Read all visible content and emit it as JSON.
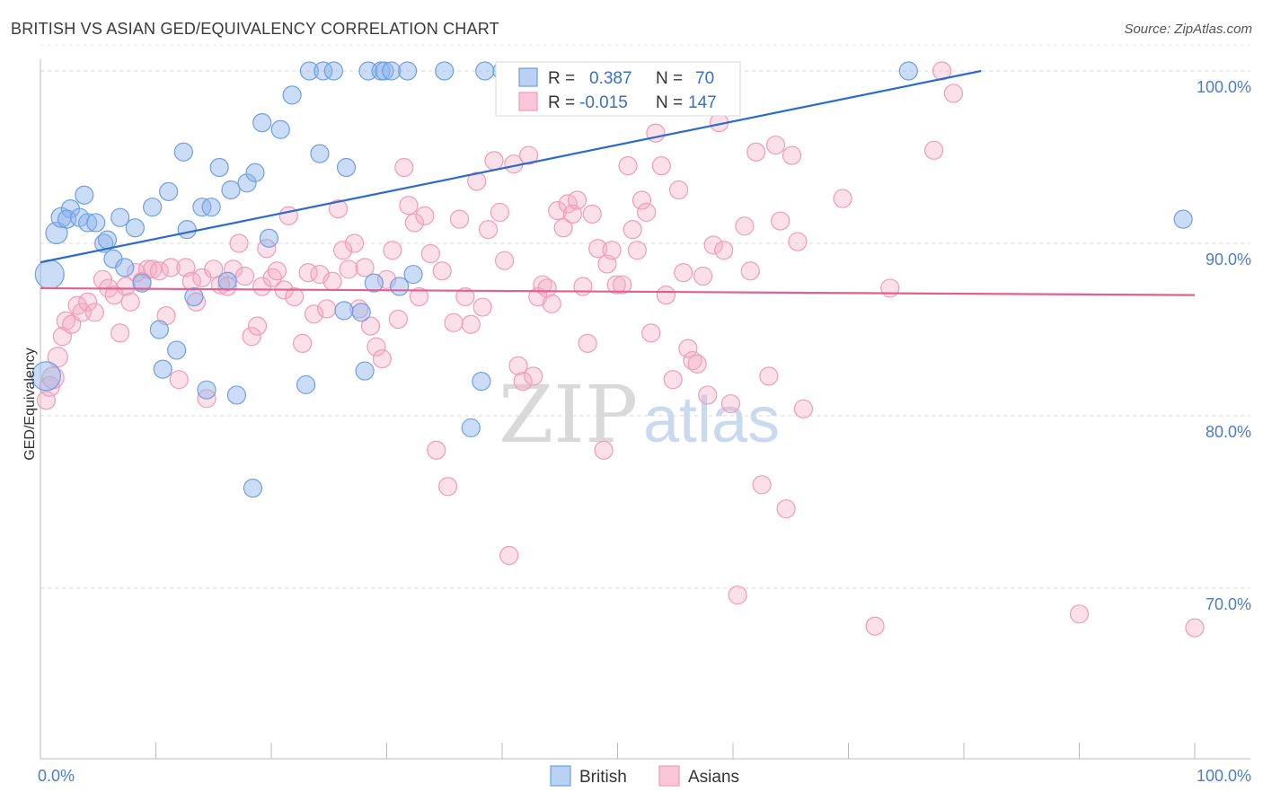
{
  "title": "BRITISH VS ASIAN GED/EQUIVALENCY CORRELATION CHART",
  "source": "Source: ZipAtlas.com",
  "chart_data": {
    "type": "scatter",
    "title": "BRITISH VS ASIAN GED/EQUIVALENCY CORRELATION CHART",
    "ylabel": "GED/Equivalency",
    "xlabel": "",
    "xlim": [
      0,
      100
    ],
    "ylim": [
      60,
      101.5
    ],
    "x_tick_labels": [
      "0.0%",
      "100.0%"
    ],
    "y_ticks": [
      70,
      80,
      90,
      100
    ],
    "y_tick_labels": [
      "70.0%",
      "80.0%",
      "90.0%",
      "100.0%"
    ],
    "grid": true,
    "legend_position": "top-center",
    "watermark": {
      "zip": "ZIP",
      "atlas": "atlas"
    },
    "legend": {
      "british": {
        "r_label": "R =",
        "r_value": "0.387",
        "n_label": "N =",
        "n_value": "70"
      },
      "asians": {
        "r_label": "R =",
        "r_value": "-0.015",
        "n_label": "N =",
        "n_value": "147"
      }
    },
    "series": [
      {
        "name": "British",
        "color": "#6f9fe0",
        "line_color": "#2a6bd1",
        "trend": {
          "x0": 0,
          "y0": 88.9,
          "x1": 81.5,
          "y1": 100
        },
        "points": [
          [
            0.8,
            88.2
          ],
          [
            0.5,
            82.3
          ],
          [
            1.4,
            90.6
          ],
          [
            1.8,
            91.5
          ],
          [
            2.6,
            92.0
          ],
          [
            2.3,
            91.4
          ],
          [
            3.4,
            91.5
          ],
          [
            3.8,
            92.8
          ],
          [
            4.1,
            91.2
          ],
          [
            4.8,
            91.2
          ],
          [
            5.5,
            90.0
          ],
          [
            5.8,
            90.2
          ],
          [
            6.3,
            89.1
          ],
          [
            6.9,
            91.5
          ],
          [
            7.3,
            88.6
          ],
          [
            8.2,
            90.9
          ],
          [
            8.8,
            87.7
          ],
          [
            9.7,
            92.1
          ],
          [
            10.3,
            85.0
          ],
          [
            10.6,
            82.7
          ],
          [
            11.1,
            93.0
          ],
          [
            11.8,
            83.8
          ],
          [
            12.4,
            95.3
          ],
          [
            12.7,
            90.8
          ],
          [
            13.3,
            86.9
          ],
          [
            14.0,
            92.1
          ],
          [
            14.4,
            81.5
          ],
          [
            14.8,
            92.1
          ],
          [
            15.5,
            94.4
          ],
          [
            16.2,
            87.8
          ],
          [
            16.5,
            93.1
          ],
          [
            17.0,
            81.2
          ],
          [
            17.9,
            93.5
          ],
          [
            18.4,
            75.8
          ],
          [
            18.6,
            94.1
          ],
          [
            19.2,
            97.0
          ],
          [
            19.8,
            90.3
          ],
          [
            20.8,
            96.6
          ],
          [
            21.8,
            98.6
          ],
          [
            23.0,
            81.8
          ],
          [
            23.3,
            100
          ],
          [
            24.2,
            95.2
          ],
          [
            24.5,
            100
          ],
          [
            25.4,
            100
          ],
          [
            26.3,
            86.1
          ],
          [
            26.5,
            94.4
          ],
          [
            27.8,
            86.0
          ],
          [
            28.1,
            82.6
          ],
          [
            28.4,
            100
          ],
          [
            28.9,
            87.7
          ],
          [
            29.5,
            100
          ],
          [
            29.8,
            100
          ],
          [
            30.4,
            100
          ],
          [
            31.1,
            87.5
          ],
          [
            31.8,
            100
          ],
          [
            32.3,
            88.2
          ],
          [
            35.0,
            100
          ],
          [
            37.3,
            79.3
          ],
          [
            38.2,
            82.0
          ],
          [
            38.5,
            100
          ],
          [
            40.0,
            100
          ],
          [
            40.8,
            100
          ],
          [
            46.5,
            100
          ],
          [
            47.2,
            100
          ],
          [
            47.8,
            100
          ],
          [
            48.7,
            100
          ],
          [
            49.3,
            100
          ],
          [
            52.0,
            100
          ],
          [
            75.2,
            100
          ],
          [
            99.0,
            91.4
          ]
        ],
        "sizes": [
          16,
          16,
          12,
          11,
          10,
          10,
          10,
          10,
          10,
          10,
          10,
          10,
          10,
          10,
          10,
          10,
          10,
          10,
          10,
          10,
          10,
          10,
          10,
          10,
          10,
          10,
          10,
          10,
          10,
          10,
          10,
          10,
          10,
          10,
          10,
          10,
          10,
          10,
          10,
          10,
          10,
          10,
          10,
          10,
          10,
          10,
          10,
          10,
          10,
          10,
          10,
          10,
          10,
          10,
          10,
          10,
          10,
          10,
          10,
          10,
          10,
          10,
          10,
          10,
          10,
          10,
          10,
          10,
          10,
          10
        ]
      },
      {
        "name": "Asians",
        "color": "#f19bb8",
        "line_color": "#e0608f",
        "trend": {
          "x0": 0,
          "y0": 87.4,
          "x1": 100,
          "y1": 87.0
        },
        "points": [
          [
            0.5,
            80.9
          ],
          [
            0.8,
            81.7
          ],
          [
            1.1,
            82.2
          ],
          [
            1.5,
            83.4
          ],
          [
            1.9,
            84.6
          ],
          [
            2.2,
            85.5
          ],
          [
            2.7,
            85.3
          ],
          [
            3.2,
            86.4
          ],
          [
            3.6,
            86.0
          ],
          [
            4.1,
            86.6
          ],
          [
            4.7,
            86.0
          ],
          [
            5.4,
            87.9
          ],
          [
            5.9,
            87.4
          ],
          [
            6.4,
            87.0
          ],
          [
            6.9,
            84.8
          ],
          [
            7.4,
            87.5
          ],
          [
            7.8,
            86.6
          ],
          [
            8.3,
            88.3
          ],
          [
            8.8,
            87.8
          ],
          [
            9.3,
            88.5
          ],
          [
            9.7,
            88.5
          ],
          [
            10.3,
            88.4
          ],
          [
            10.9,
            85.8
          ],
          [
            11.3,
            88.6
          ],
          [
            12.0,
            82.1
          ],
          [
            12.6,
            88.6
          ],
          [
            13.1,
            87.8
          ],
          [
            13.5,
            86.6
          ],
          [
            14.0,
            88.0
          ],
          [
            14.4,
            81.0
          ],
          [
            15.0,
            88.5
          ],
          [
            15.6,
            87.6
          ],
          [
            16.2,
            87.5
          ],
          [
            16.7,
            88.5
          ],
          [
            17.2,
            90.0
          ],
          [
            17.7,
            88.1
          ],
          [
            18.3,
            84.6
          ],
          [
            18.8,
            85.2
          ],
          [
            19.2,
            87.5
          ],
          [
            19.6,
            89.7
          ],
          [
            20.1,
            88.0
          ],
          [
            20.5,
            88.4
          ],
          [
            21.1,
            87.3
          ],
          [
            21.5,
            91.6
          ],
          [
            22.0,
            86.9
          ],
          [
            22.7,
            84.2
          ],
          [
            23.2,
            88.3
          ],
          [
            23.7,
            85.9
          ],
          [
            24.2,
            88.2
          ],
          [
            24.8,
            86.2
          ],
          [
            25.3,
            87.8
          ],
          [
            25.8,
            92.0
          ],
          [
            26.2,
            89.6
          ],
          [
            26.7,
            88.5
          ],
          [
            27.2,
            90.0
          ],
          [
            27.6,
            86.2
          ],
          [
            28.1,
            88.6
          ],
          [
            28.6,
            85.2
          ],
          [
            29.1,
            84.0
          ],
          [
            29.6,
            83.3
          ],
          [
            30.0,
            87.9
          ],
          [
            30.5,
            89.6
          ],
          [
            31.0,
            85.6
          ],
          [
            31.5,
            94.4
          ],
          [
            31.9,
            92.2
          ],
          [
            32.4,
            91.2
          ],
          [
            32.8,
            86.9
          ],
          [
            33.3,
            91.6
          ],
          [
            33.8,
            89.4
          ],
          [
            34.3,
            78.0
          ],
          [
            34.8,
            88.4
          ],
          [
            35.3,
            75.9
          ],
          [
            35.8,
            85.4
          ],
          [
            36.3,
            91.4
          ],
          [
            36.8,
            86.9
          ],
          [
            37.3,
            85.3
          ],
          [
            37.8,
            93.6
          ],
          [
            38.3,
            86.3
          ],
          [
            38.8,
            90.8
          ],
          [
            39.3,
            94.8
          ],
          [
            39.8,
            91.8
          ],
          [
            40.2,
            89.0
          ],
          [
            40.6,
            71.9
          ],
          [
            41.0,
            94.6
          ],
          [
            41.4,
            82.9
          ],
          [
            41.8,
            82.0
          ],
          [
            42.3,
            95.1
          ],
          [
            42.7,
            82.3
          ],
          [
            43.1,
            86.9
          ],
          [
            43.5,
            87.6
          ],
          [
            43.9,
            87.4
          ],
          [
            44.3,
            86.5
          ],
          [
            44.8,
            91.9
          ],
          [
            45.3,
            90.9
          ],
          [
            45.7,
            92.3
          ],
          [
            46.1,
            91.7
          ],
          [
            46.5,
            92.5
          ],
          [
            47.0,
            87.5
          ],
          [
            47.4,
            84.2
          ],
          [
            47.8,
            91.7
          ],
          [
            48.3,
            89.7
          ],
          [
            48.8,
            78.0
          ],
          [
            49.1,
            88.8
          ],
          [
            49.5,
            89.6
          ],
          [
            49.9,
            87.6
          ],
          [
            50.4,
            87.6
          ],
          [
            50.9,
            94.5
          ],
          [
            51.3,
            90.8
          ],
          [
            51.7,
            89.6
          ],
          [
            52.1,
            92.5
          ],
          [
            52.5,
            91.8
          ],
          [
            52.9,
            84.8
          ],
          [
            53.3,
            96.4
          ],
          [
            53.8,
            94.5
          ],
          [
            54.2,
            87.0
          ],
          [
            54.8,
            82.1
          ],
          [
            55.3,
            93.1
          ],
          [
            55.7,
            88.3
          ],
          [
            56.1,
            83.9
          ],
          [
            56.5,
            83.2
          ],
          [
            56.9,
            83.0
          ],
          [
            57.4,
            88.1
          ],
          [
            57.8,
            81.2
          ],
          [
            58.3,
            89.9
          ],
          [
            58.8,
            97.0
          ],
          [
            59.2,
            89.6
          ],
          [
            59.8,
            80.7
          ],
          [
            60.4,
            69.6
          ],
          [
            61.0,
            91.0
          ],
          [
            61.5,
            88.4
          ],
          [
            62.0,
            95.3
          ],
          [
            62.5,
            76.0
          ],
          [
            63.1,
            82.3
          ],
          [
            63.7,
            95.7
          ],
          [
            64.1,
            91.3
          ],
          [
            64.6,
            74.6
          ],
          [
            65.1,
            95.1
          ],
          [
            65.6,
            90.1
          ],
          [
            66.1,
            80.4
          ],
          [
            69.5,
            92.6
          ],
          [
            72.3,
            67.8
          ],
          [
            73.6,
            87.4
          ],
          [
            77.4,
            95.4
          ],
          [
            78.1,
            100
          ],
          [
            79.1,
            98.7
          ],
          [
            90.0,
            68.5
          ],
          [
            100.0,
            67.7
          ]
        ],
        "sizes": [
          10,
          11,
          12,
          11,
          10,
          10,
          10,
          10,
          10,
          10,
          10,
          10,
          10,
          10,
          10,
          10,
          10,
          10,
          10,
          10,
          10,
          10,
          10,
          10,
          10,
          10,
          10,
          10,
          10,
          10,
          10,
          10,
          10,
          10,
          10,
          10,
          10,
          10,
          10,
          10,
          10,
          10,
          10,
          10,
          10,
          10,
          10,
          10,
          10,
          10,
          10,
          10,
          10,
          10,
          10,
          10,
          10,
          10,
          10,
          10,
          10,
          10,
          10,
          10,
          10,
          10,
          10,
          10,
          10,
          10,
          10,
          10,
          10,
          10,
          10,
          10,
          10,
          10,
          10,
          10,
          10,
          10,
          10,
          10,
          10,
          10,
          10,
          10,
          10,
          10,
          10,
          10,
          10,
          10,
          10,
          10,
          10,
          10,
          10,
          10,
          10,
          10,
          10,
          10,
          10,
          10,
          10,
          10,
          10,
          10,
          10,
          10,
          10,
          10,
          10,
          10,
          10,
          10,
          10,
          10,
          10,
          10,
          10,
          10,
          10,
          10,
          10,
          10,
          10,
          10,
          10,
          10,
          10,
          10,
          10,
          10,
          10,
          10,
          10,
          10,
          10,
          10,
          10,
          10,
          10,
          10,
          10
        ]
      }
    ]
  }
}
